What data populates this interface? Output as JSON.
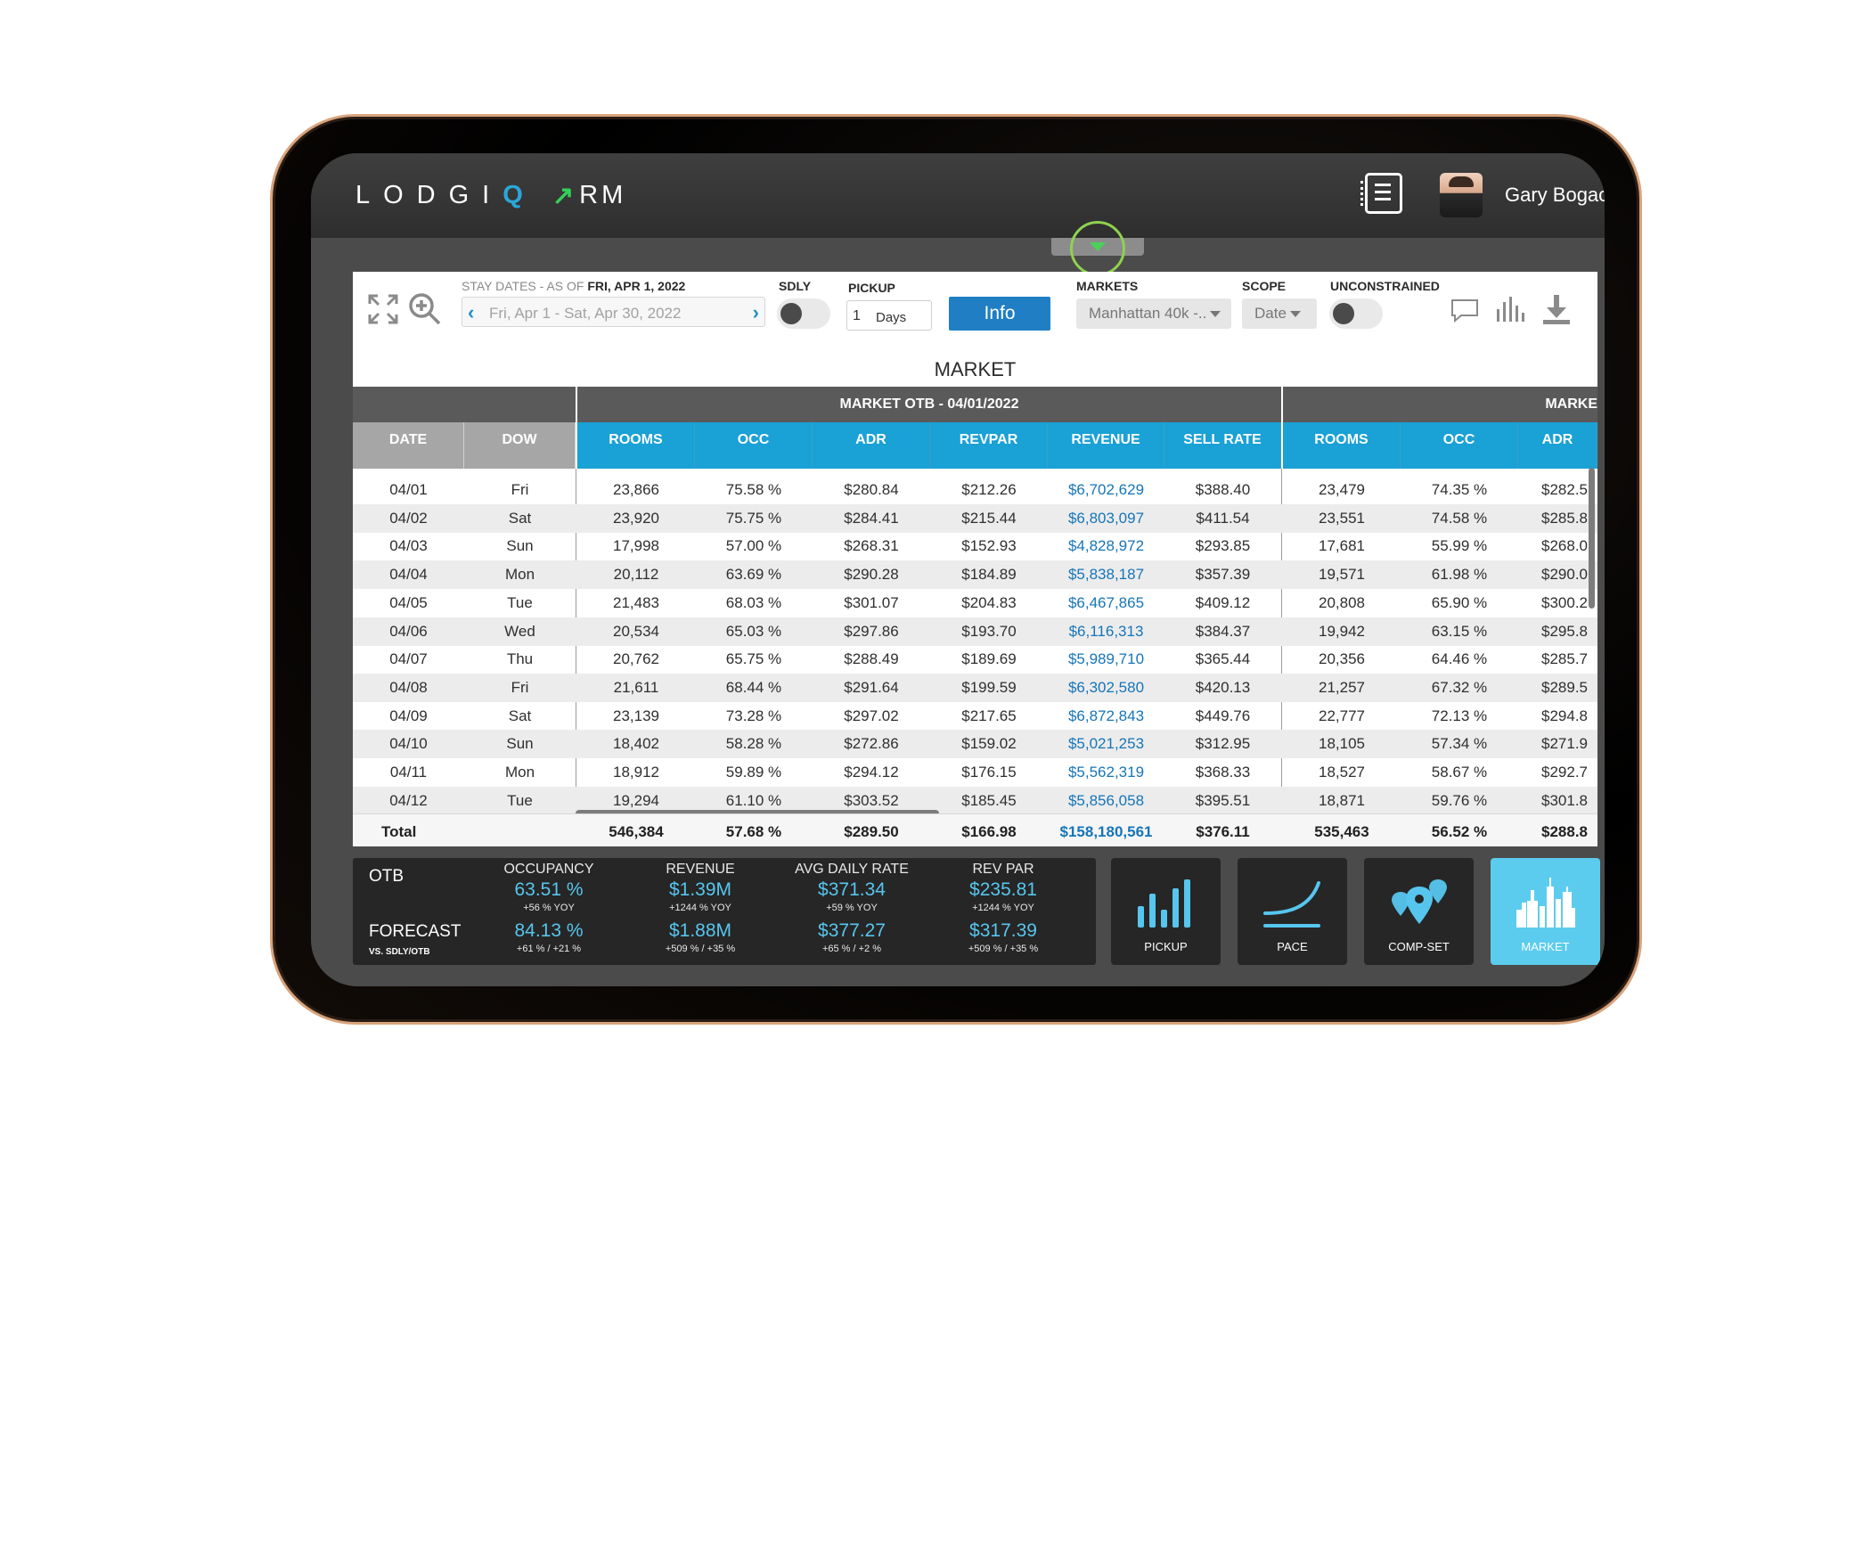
{
  "app": {
    "logo_main": "LODGI",
    "logo_q": "Q",
    "logo_arrow": "↗",
    "logo_rm": "RM",
    "user_name": "Gary Bogach"
  },
  "toolbar": {
    "stay_dates_label": "STAY DATES - AS OF",
    "as_of_date": "FRI, APR 1, 2022",
    "date_range": "Fri, Apr 1 - Sat, Apr 30, 2022",
    "sdly_label": "SDLY",
    "pickup_label": "PICKUP",
    "pickup_value": "1",
    "pickup_unit": "Days",
    "info_label": "Info",
    "markets_label": "MARKETS",
    "markets_value": "Manhattan 40k -..",
    "scope_label": "SCOPE",
    "scope_value": "Date",
    "unconstrained_label": "UNCONSTRAINED"
  },
  "section_title": "MARKET",
  "table": {
    "group_headers": [
      "MARKET OTB - 04/01/2022",
      "MARKE"
    ],
    "columns": [
      "DATE",
      "DOW",
      "ROOMS",
      "OCC",
      "ADR",
      "REVPAR",
      "REVENUE",
      "SELL RATE",
      "ROOMS",
      "OCC",
      "ADR"
    ],
    "rows": [
      [
        "04/01",
        "Fri",
        "23,866",
        "75.58 %",
        "$280.84",
        "$212.26",
        "$6,702,629",
        "$388.40",
        "23,479",
        "74.35 %",
        "$282.5"
      ],
      [
        "04/02",
        "Sat",
        "23,920",
        "75.75 %",
        "$284.41",
        "$215.44",
        "$6,803,097",
        "$411.54",
        "23,551",
        "74.58 %",
        "$285.8"
      ],
      [
        "04/03",
        "Sun",
        "17,998",
        "57.00 %",
        "$268.31",
        "$152.93",
        "$4,828,972",
        "$293.85",
        "17,681",
        "55.99 %",
        "$268.0"
      ],
      [
        "04/04",
        "Mon",
        "20,112",
        "63.69 %",
        "$290.28",
        "$184.89",
        "$5,838,187",
        "$357.39",
        "19,571",
        "61.98 %",
        "$290.0"
      ],
      [
        "04/05",
        "Tue",
        "21,483",
        "68.03 %",
        "$301.07",
        "$204.83",
        "$6,467,865",
        "$409.12",
        "20,808",
        "65.90 %",
        "$300.2"
      ],
      [
        "04/06",
        "Wed",
        "20,534",
        "65.03 %",
        "$297.86",
        "$193.70",
        "$6,116,313",
        "$384.37",
        "19,942",
        "63.15 %",
        "$295.8"
      ],
      [
        "04/07",
        "Thu",
        "20,762",
        "65.75 %",
        "$288.49",
        "$189.69",
        "$5,989,710",
        "$365.44",
        "20,356",
        "64.46 %",
        "$285.7"
      ],
      [
        "04/08",
        "Fri",
        "21,611",
        "68.44 %",
        "$291.64",
        "$199.59",
        "$6,302,580",
        "$420.13",
        "21,257",
        "67.32 %",
        "$289.5"
      ],
      [
        "04/09",
        "Sat",
        "23,139",
        "73.28 %",
        "$297.02",
        "$217.65",
        "$6,872,843",
        "$449.76",
        "22,777",
        "72.13 %",
        "$294.8"
      ],
      [
        "04/10",
        "Sun",
        "18,402",
        "58.28 %",
        "$272.86",
        "$159.02",
        "$5,021,253",
        "$312.95",
        "18,105",
        "57.34 %",
        "$271.9"
      ],
      [
        "04/11",
        "Mon",
        "18,912",
        "59.89 %",
        "$294.12",
        "$176.15",
        "$5,562,319",
        "$368.33",
        "18,527",
        "58.67 %",
        "$292.7"
      ],
      [
        "04/12",
        "Tue",
        "19,294",
        "61.10 %",
        "$303.52",
        "$185.45",
        "$5,856,058",
        "$395.51",
        "18,871",
        "59.76 %",
        "$301.8"
      ]
    ],
    "total": [
      "Total",
      "",
      "546,384",
      "57.68 %",
      "$289.50",
      "$166.98",
      "$158,180,561",
      "$376.11",
      "535,463",
      "56.52 %",
      "$288.8"
    ]
  },
  "kpis": {
    "otb_label": "OTB",
    "forecast_label": "FORECAST",
    "forecast_sub": "VS. SDLY/OTB",
    "metrics": [
      {
        "title": "OCCUPANCY",
        "otb": "63.51 %",
        "otb_change": "+56 % YOY",
        "forecast": "84.13 %",
        "forecast_change": "+61 % / +21 %"
      },
      {
        "title": "REVENUE",
        "otb": "$1.39M",
        "otb_change": "+1244 % YOY",
        "forecast": "$1.88M",
        "forecast_change": "+509 % / +35 %"
      },
      {
        "title": "AVG DAILY RATE",
        "otb": "$371.34",
        "otb_change": "+59 % YOY",
        "forecast": "$377.27",
        "forecast_change": "+65 % / +2 %"
      },
      {
        "title": "REV PAR",
        "otb": "$235.81",
        "otb_change": "+1244 % YOY",
        "forecast": "$317.39",
        "forecast_change": "+509 % / +35 %"
      }
    ]
  },
  "nav": [
    {
      "label": "PICKUP",
      "icon": "pickup-bars-icon",
      "active": false
    },
    {
      "label": "PACE",
      "icon": "pace-curve-icon",
      "active": false
    },
    {
      "label": "COMP-SET",
      "icon": "comp-set-pins-icon",
      "active": false
    },
    {
      "label": "MARKET",
      "icon": "market-skyline-icon",
      "active": true
    }
  ],
  "colors": {
    "accent_blue": "#1aa1d6",
    "kpi_value": "#56c6ee",
    "active_tile": "#5cccee",
    "revenue_text": "#1675b8",
    "pull_ring": "#8fd14f"
  }
}
